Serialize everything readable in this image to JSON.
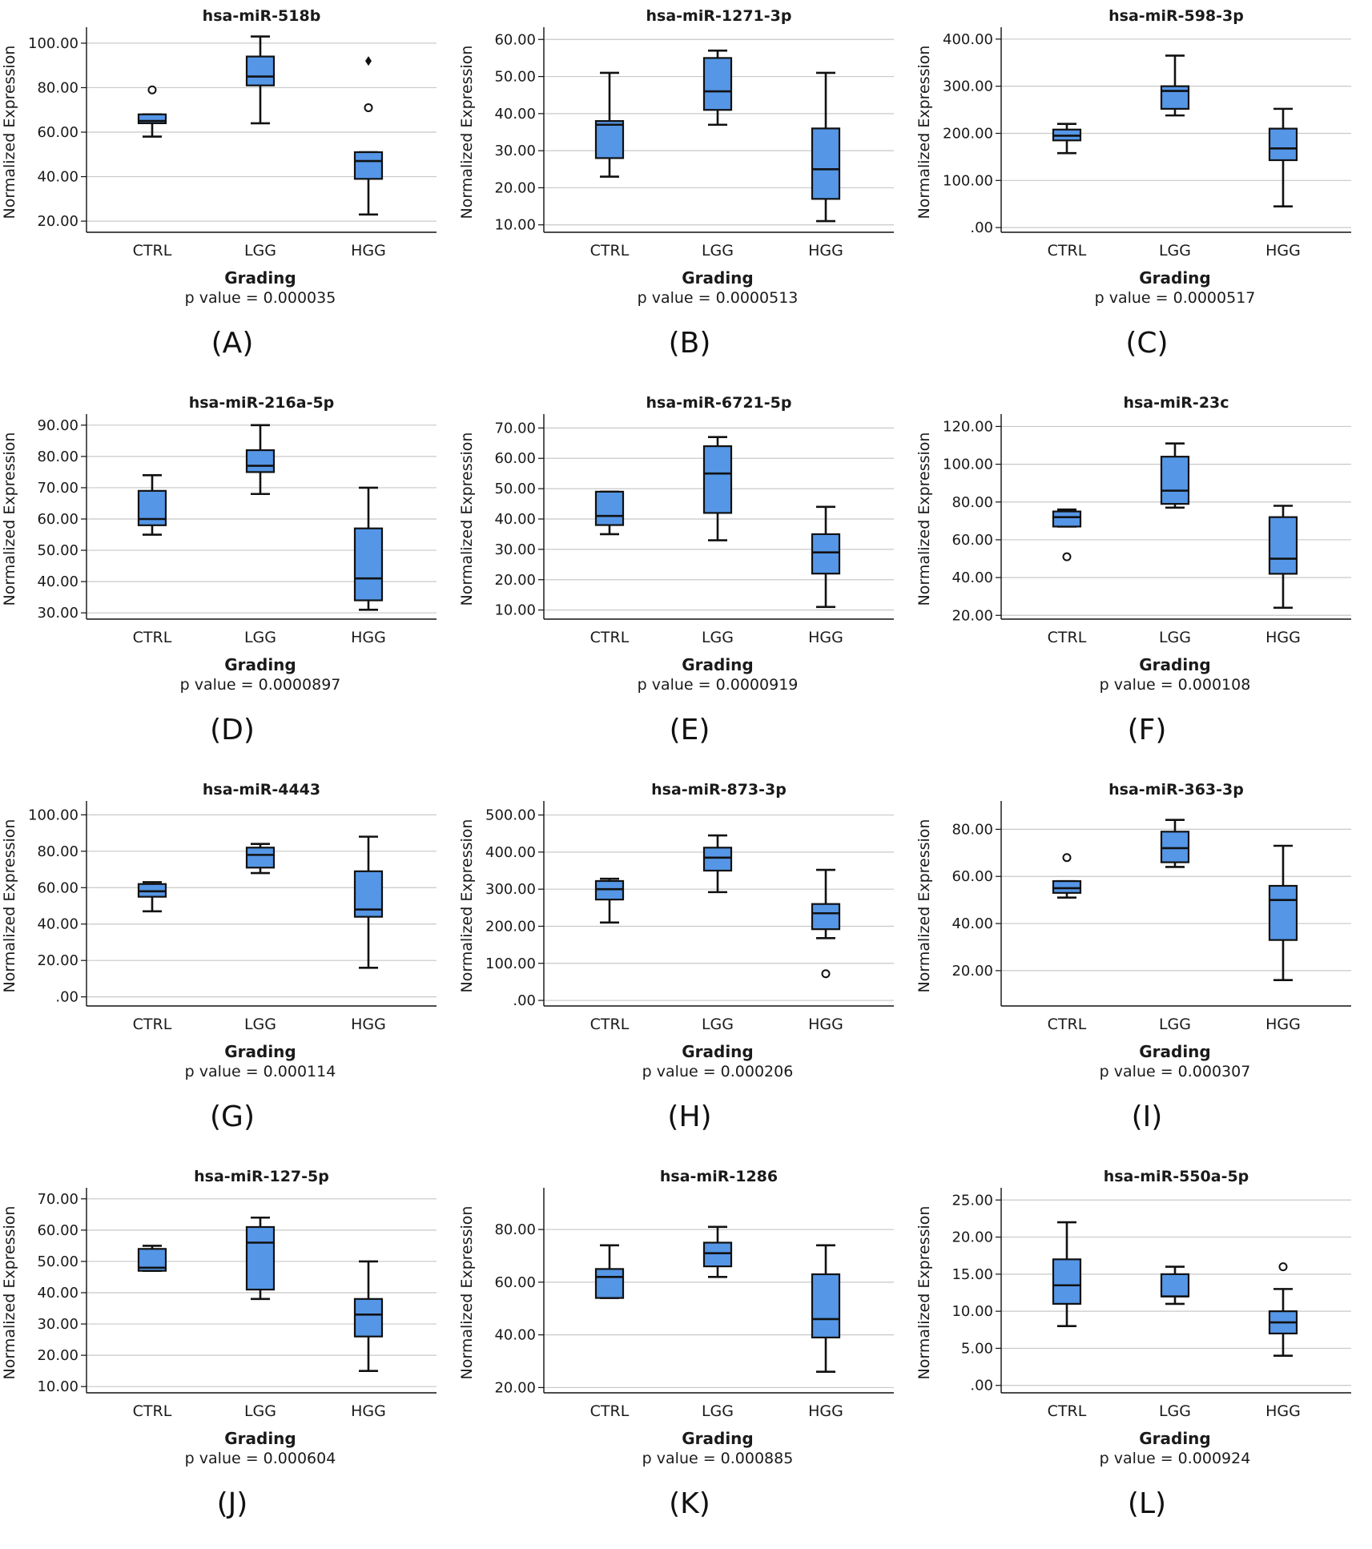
{
  "styles": {
    "box_fill": "#5596e6",
    "stroke": "#111111",
    "grid": "#c8c8c8"
  },
  "chart_data": [
    {
      "type": "box",
      "panel_label": "(A)",
      "title": "hsa-miR-518b",
      "ylabel": "Normalized Expression",
      "xlabel": "Grading",
      "p_value_text": "p value = 0.000035",
      "categories": [
        "CTRL",
        "LGG",
        "HGG"
      ],
      "ylim": [
        15,
        105
      ],
      "yticks": [
        20,
        40,
        60,
        80,
        100
      ],
      "ytick_labels": [
        "20.00",
        "40.00",
        "60.00",
        "80.00",
        "100.00"
      ],
      "boxes": [
        {
          "whisker_low": 58,
          "q1": 64,
          "median": 65,
          "q3": 68,
          "whisker_high": 68
        },
        {
          "whisker_low": 64,
          "q1": 81,
          "median": 85,
          "q3": 94,
          "whisker_high": 103
        },
        {
          "whisker_low": 23,
          "q1": 39,
          "median": 47,
          "q3": 51,
          "whisker_high": 51
        }
      ],
      "outliers": [
        {
          "category": "CTRL",
          "value": 79,
          "marker": "circle"
        },
        {
          "category": "HGG",
          "value": 71,
          "marker": "circle"
        },
        {
          "category": "HGG",
          "value": 92,
          "marker": "diamond"
        }
      ]
    },
    {
      "type": "box",
      "panel_label": "(B)",
      "title": "hsa-miR-1271-3p",
      "ylabel": "Normalized Expression",
      "xlabel": "Grading",
      "p_value_text": "p value = 0.0000513",
      "categories": [
        "CTRL",
        "LGG",
        "HGG"
      ],
      "ylim": [
        8,
        62
      ],
      "yticks": [
        10,
        20,
        30,
        40,
        50,
        60
      ],
      "ytick_labels": [
        "10.00",
        "20.00",
        "30.00",
        "40.00",
        "50.00",
        "60.00"
      ],
      "boxes": [
        {
          "whisker_low": 23,
          "q1": 28,
          "median": 37,
          "q3": 38,
          "whisker_high": 51
        },
        {
          "whisker_low": 37,
          "q1": 41,
          "median": 46,
          "q3": 55,
          "whisker_high": 57
        },
        {
          "whisker_low": 11,
          "q1": 17,
          "median": 25,
          "q3": 36,
          "whisker_high": 51
        }
      ],
      "outliers": []
    },
    {
      "type": "box",
      "panel_label": "(C)",
      "title": "hsa-miR-598-3p",
      "ylabel": "Normalized Expression",
      "xlabel": "Grading",
      "p_value_text": "p value = 0.0000517",
      "categories": [
        "CTRL",
        "LGG",
        "HGG"
      ],
      "ylim": [
        -10,
        415
      ],
      "yticks": [
        0,
        100,
        200,
        300,
        400
      ],
      "ytick_labels": [
        ".00",
        "100.00",
        "200.00",
        "300.00",
        "400.00"
      ],
      "boxes": [
        {
          "whisker_low": 158,
          "q1": 185,
          "median": 195,
          "q3": 208,
          "whisker_high": 220
        },
        {
          "whisker_low": 238,
          "q1": 252,
          "median": 290,
          "q3": 300,
          "whisker_high": 365
        },
        {
          "whisker_low": 45,
          "q1": 143,
          "median": 168,
          "q3": 210,
          "whisker_high": 252
        }
      ],
      "outliers": []
    },
    {
      "type": "box",
      "panel_label": "(D)",
      "title": "hsa-miR-216a-5p",
      "ylabel": "Normalized Expression",
      "xlabel": "Grading",
      "p_value_text": "p value = 0.0000897",
      "categories": [
        "CTRL",
        "LGG",
        "HGG"
      ],
      "ylim": [
        28,
        92
      ],
      "yticks": [
        30,
        40,
        50,
        60,
        70,
        80,
        90
      ],
      "ytick_labels": [
        "30.00",
        "40.00",
        "50.00",
        "60.00",
        "70.00",
        "80.00",
        "90.00"
      ],
      "boxes": [
        {
          "whisker_low": 55,
          "q1": 58,
          "median": 60,
          "q3": 69,
          "whisker_high": 74
        },
        {
          "whisker_low": 68,
          "q1": 75,
          "median": 77,
          "q3": 82,
          "whisker_high": 90
        },
        {
          "whisker_low": 31,
          "q1": 34,
          "median": 41,
          "q3": 57,
          "whisker_high": 70
        }
      ],
      "outliers": []
    },
    {
      "type": "box",
      "panel_label": "(E)",
      "title": "hsa-miR-6721-5p",
      "ylabel": "Normalized Expression",
      "xlabel": "Grading",
      "p_value_text": "p value = 0.0000919",
      "categories": [
        "CTRL",
        "LGG",
        "HGG"
      ],
      "ylim": [
        7,
        73
      ],
      "yticks": [
        10,
        20,
        30,
        40,
        50,
        60,
        70
      ],
      "ytick_labels": [
        "10.00",
        "20.00",
        "30.00",
        "40.00",
        "50.00",
        "60.00",
        "70.00"
      ],
      "boxes": [
        {
          "whisker_low": 35,
          "q1": 38,
          "median": 41,
          "q3": 49,
          "whisker_high": 49
        },
        {
          "whisker_low": 33,
          "q1": 42,
          "median": 55,
          "q3": 64,
          "whisker_high": 67
        },
        {
          "whisker_low": 11,
          "q1": 22,
          "median": 29,
          "q3": 35,
          "whisker_high": 44
        }
      ],
      "outliers": []
    },
    {
      "type": "box",
      "panel_label": "(F)",
      "title": "hsa-miR-23c",
      "ylabel": "Normalized Expression",
      "xlabel": "Grading",
      "p_value_text": "p value = 0.000108",
      "categories": [
        "CTRL",
        "LGG",
        "HGG"
      ],
      "ylim": [
        18,
        124
      ],
      "yticks": [
        20,
        40,
        60,
        80,
        100,
        120
      ],
      "ytick_labels": [
        "20.00",
        "40.00",
        "60.00",
        "80.00",
        "100.00",
        "120.00"
      ],
      "boxes": [
        {
          "whisker_low": 67,
          "q1": 67,
          "median": 72,
          "q3": 75,
          "whisker_high": 76
        },
        {
          "whisker_low": 77,
          "q1": 79,
          "median": 86,
          "q3": 104,
          "whisker_high": 111
        },
        {
          "whisker_low": 24,
          "q1": 42,
          "median": 50,
          "q3": 72,
          "whisker_high": 78
        }
      ],
      "outliers": [
        {
          "category": "CTRL",
          "value": 51,
          "marker": "circle"
        }
      ]
    },
    {
      "type": "box",
      "panel_label": "(G)",
      "title": "hsa-miR-4443",
      "ylabel": "Normalized Expression",
      "xlabel": "Grading",
      "p_value_text": "p value = 0.000114",
      "categories": [
        "CTRL",
        "LGG",
        "HGG"
      ],
      "ylim": [
        -5,
        105
      ],
      "yticks": [
        0,
        20,
        40,
        60,
        80,
        100
      ],
      "ytick_labels": [
        ".00",
        "20.00",
        "40.00",
        "60.00",
        "80.00",
        "100.00"
      ],
      "boxes": [
        {
          "whisker_low": 47,
          "q1": 55,
          "median": 58,
          "q3": 62,
          "whisker_high": 63
        },
        {
          "whisker_low": 68,
          "q1": 71,
          "median": 78,
          "q3": 82,
          "whisker_high": 84
        },
        {
          "whisker_low": 16,
          "q1": 44,
          "median": 48,
          "q3": 69,
          "whisker_high": 88
        }
      ],
      "outliers": []
    },
    {
      "type": "box",
      "panel_label": "(H)",
      "title": "hsa-miR-873-3p",
      "ylabel": "Normalized Expression",
      "xlabel": "Grading",
      "p_value_text": "p value = 0.000206",
      "categories": [
        "CTRL",
        "LGG",
        "HGG"
      ],
      "ylim": [
        -15,
        525
      ],
      "yticks": [
        0,
        100,
        200,
        300,
        400,
        500
      ],
      "ytick_labels": [
        ".00",
        "100.00",
        "200.00",
        "300.00",
        "400.00",
        "500.00"
      ],
      "boxes": [
        {
          "whisker_low": 210,
          "q1": 272,
          "median": 300,
          "q3": 322,
          "whisker_high": 328
        },
        {
          "whisker_low": 292,
          "q1": 350,
          "median": 385,
          "q3": 412,
          "whisker_high": 445
        },
        {
          "whisker_low": 168,
          "q1": 192,
          "median": 235,
          "q3": 260,
          "whisker_high": 352
        }
      ],
      "outliers": [
        {
          "category": "HGG",
          "value": 72,
          "marker": "circle"
        }
      ]
    },
    {
      "type": "box",
      "panel_label": "(I)",
      "title": "hsa-miR-363-3p",
      "ylabel": "Normalized Expression",
      "xlabel": "Grading",
      "p_value_text": "p value = 0.000307",
      "categories": [
        "CTRL",
        "LGG",
        "HGG"
      ],
      "ylim": [
        5,
        90
      ],
      "yticks": [
        20,
        40,
        60,
        80
      ],
      "ytick_labels": [
        "20.00",
        "40.00",
        "60.00",
        "80.00"
      ],
      "boxes": [
        {
          "whisker_low": 51,
          "q1": 53,
          "median": 55,
          "q3": 58,
          "whisker_high": 58
        },
        {
          "whisker_low": 64,
          "q1": 66,
          "median": 72,
          "q3": 79,
          "whisker_high": 84
        },
        {
          "whisker_low": 16,
          "q1": 33,
          "median": 50,
          "q3": 56,
          "whisker_high": 73
        }
      ],
      "outliers": [
        {
          "category": "CTRL",
          "value": 68,
          "marker": "circle"
        }
      ]
    },
    {
      "type": "box",
      "panel_label": "(J)",
      "title": "hsa-miR-127-5p",
      "ylabel": "Normalized Expression",
      "xlabel": "Grading",
      "p_value_text": "p value = 0.000604",
      "categories": [
        "CTRL",
        "LGG",
        "HGG"
      ],
      "ylim": [
        8,
        72
      ],
      "yticks": [
        10,
        20,
        30,
        40,
        50,
        60,
        70
      ],
      "ytick_labels": [
        "10.00",
        "20.00",
        "30.00",
        "40.00",
        "50.00",
        "60.00",
        "70.00"
      ],
      "boxes": [
        {
          "whisker_low": 47,
          "q1": 47,
          "median": 48,
          "q3": 54,
          "whisker_high": 55
        },
        {
          "whisker_low": 38,
          "q1": 41,
          "median": 56,
          "q3": 61,
          "whisker_high": 64
        },
        {
          "whisker_low": 15,
          "q1": 26,
          "median": 33,
          "q3": 38,
          "whisker_high": 50
        }
      ],
      "outliers": []
    },
    {
      "type": "box",
      "panel_label": "(K)",
      "title": "hsa-miR-1286",
      "ylabel": "Normalized Expression",
      "xlabel": "Grading",
      "p_value_text": "p value = 0.000885",
      "categories": [
        "CTRL",
        "LGG",
        "HGG"
      ],
      "ylim": [
        18,
        94
      ],
      "yticks": [
        20,
        40,
        60,
        80
      ],
      "ytick_labels": [
        "20.00",
        "40.00",
        "60.00",
        "80.00"
      ],
      "boxes": [
        {
          "whisker_low": 54,
          "q1": 54,
          "median": 62,
          "q3": 65,
          "whisker_high": 74
        },
        {
          "whisker_low": 62,
          "q1": 66,
          "median": 71,
          "q3": 75,
          "whisker_high": 81
        },
        {
          "whisker_low": 26,
          "q1": 39,
          "median": 46,
          "q3": 63,
          "whisker_high": 74
        }
      ],
      "outliers": []
    },
    {
      "type": "box",
      "panel_label": "(L)",
      "title": "hsa-miR-550a-5p",
      "ylabel": "Normalized Expression",
      "xlabel": "Grading",
      "p_value_text": "p value = 0.000924",
      "categories": [
        "CTRL",
        "LGG",
        "HGG"
      ],
      "ylim": [
        -1,
        26
      ],
      "yticks": [
        0,
        5,
        10,
        15,
        20,
        25
      ],
      "ytick_labels": [
        ".00",
        "5.00",
        "10.00",
        "15.00",
        "20.00",
        "25.00"
      ],
      "boxes": [
        {
          "whisker_low": 8,
          "q1": 11,
          "median": 13.5,
          "q3": 17,
          "whisker_high": 22
        },
        {
          "whisker_low": 11,
          "q1": 12,
          "median": 12,
          "q3": 15,
          "whisker_high": 16
        },
        {
          "whisker_low": 4,
          "q1": 7,
          "median": 8.5,
          "q3": 10,
          "whisker_high": 13
        }
      ],
      "outliers": [
        {
          "category": "HGG",
          "value": 16,
          "marker": "circle"
        }
      ]
    }
  ]
}
